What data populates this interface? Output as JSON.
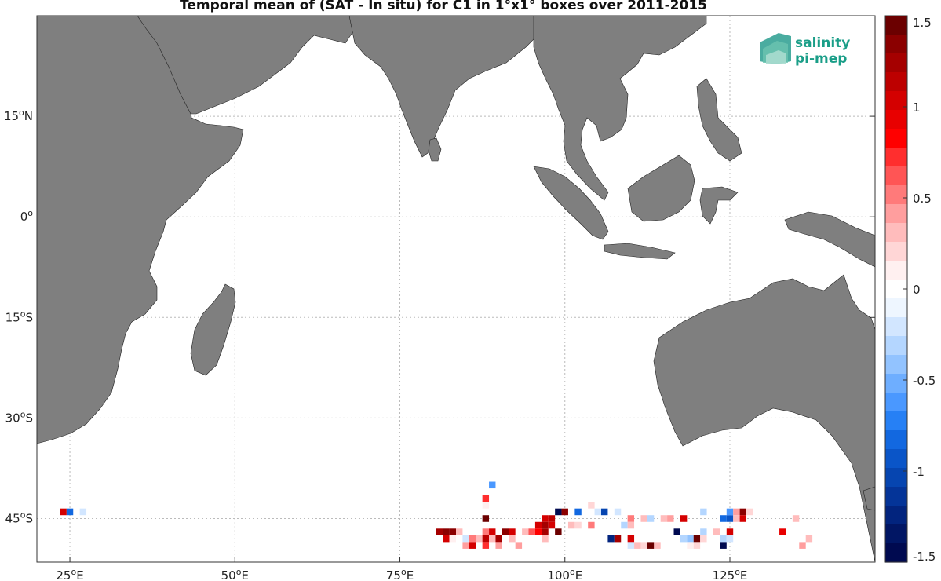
{
  "title": "Temporal mean of (SAT - In situ) for C1 in 1°x1° boxes over 2011-2015",
  "logo": {
    "line1": "salinity",
    "line2": "pi-mep"
  },
  "map": {
    "region": "Indian Ocean",
    "lon_range": [
      20,
      147
    ],
    "lat_range": [
      -51.5,
      30
    ],
    "land_color": "#7f7f7f",
    "ocean_color": "#ffffff",
    "grid": "dotted",
    "x_ticks": [
      {
        "value": 25,
        "deg": "25",
        "hemi": "E"
      },
      {
        "value": 50,
        "deg": "50",
        "hemi": "E"
      },
      {
        "value": 75,
        "deg": "75",
        "hemi": "E"
      },
      {
        "value": 100,
        "deg": "100",
        "hemi": "E"
      },
      {
        "value": 125,
        "deg": "125",
        "hemi": "E"
      }
    ],
    "y_ticks": [
      {
        "value": 15,
        "deg": "15",
        "hemi": "N"
      },
      {
        "value": 0,
        "deg": "0",
        "hemi": ""
      },
      {
        "value": -15,
        "deg": "15",
        "hemi": "S"
      },
      {
        "value": -30,
        "deg": "30",
        "hemi": "S"
      },
      {
        "value": -45,
        "deg": "45",
        "hemi": "S"
      }
    ]
  },
  "colorbar": {
    "range": [
      -1.5,
      1.5
    ],
    "ticks": [
      "1.5",
      "1",
      "0.5",
      "0",
      "-0.5",
      "-1",
      "-1.5"
    ],
    "tick_values": [
      1.5,
      1,
      0.5,
      0,
      -0.5,
      -1,
      -1.5
    ],
    "colors_top_to_bottom": [
      "#6b0000",
      "#8b0000",
      "#a50000",
      "#bd0000",
      "#d40000",
      "#e80000",
      "#ff0000",
      "#ff2e2e",
      "#ff5555",
      "#ff7a7a",
      "#ff9e9e",
      "#ffbcbc",
      "#ffd6d6",
      "#fff0f0",
      "#ffffff",
      "#eef6ff",
      "#d2e6ff",
      "#b4d6ff",
      "#92c3ff",
      "#6eaeff",
      "#4a98ff",
      "#2680f5",
      "#1268e0",
      "#0a55c8",
      "#0645b0",
      "#043498",
      "#02247e",
      "#011664",
      "#000a50"
    ]
  },
  "chart_data": {
    "type": "heatmap",
    "title": "Temporal mean of (SAT - In situ) for C1 in 1°x1° boxes over 2011-2015",
    "units_note": "colorbar -1.5 to 1.5",
    "cells": [
      {
        "lon": 24,
        "lat": -44,
        "value": 1.0
      },
      {
        "lon": 25,
        "lat": -44,
        "value": -0.8
      },
      {
        "lon": 27,
        "lat": -44,
        "value": -0.25
      },
      {
        "lon": 89,
        "lat": -40,
        "value": -0.6
      },
      {
        "lon": 88,
        "lat": -42,
        "value": 0.7
      },
      {
        "lon": 88,
        "lat": -43,
        "value": 0.1
      },
      {
        "lon": 88,
        "lat": -45,
        "value": 1.4
      },
      {
        "lon": 97,
        "lat": -45,
        "value": 1.0
      },
      {
        "lon": 98,
        "lat": -45,
        "value": 1.1
      },
      {
        "lon": 97,
        "lat": -46,
        "value": 1.2
      },
      {
        "lon": 98,
        "lat": -46,
        "value": 1.0
      },
      {
        "lon": 99,
        "lat": -44,
        "value": -1.4
      },
      {
        "lon": 100,
        "lat": -44,
        "value": 1.3
      },
      {
        "lon": 102,
        "lat": -44,
        "value": -0.8
      },
      {
        "lon": 104,
        "lat": -43,
        "value": 0.2
      },
      {
        "lon": 105,
        "lat": -44,
        "value": -0.2
      },
      {
        "lon": 106,
        "lat": -44,
        "value": -1.0
      },
      {
        "lon": 108,
        "lat": -44,
        "value": -0.2
      },
      {
        "lon": 110,
        "lat": -45,
        "value": 0.5
      },
      {
        "lon": 112,
        "lat": -45,
        "value": 0.3
      },
      {
        "lon": 113,
        "lat": -45,
        "value": -0.3
      },
      {
        "lon": 115,
        "lat": -45,
        "value": 0.3
      },
      {
        "lon": 116,
        "lat": -45,
        "value": 0.4
      },
      {
        "lon": 118,
        "lat": -45,
        "value": 1.0
      },
      {
        "lon": 121,
        "lat": -44,
        "value": -0.3
      },
      {
        "lon": 124,
        "lat": -45,
        "value": -0.8
      },
      {
        "lon": 125,
        "lat": -45,
        "value": -0.9
      },
      {
        "lon": 125,
        "lat": -44,
        "value": -0.6
      },
      {
        "lon": 126,
        "lat": -44,
        "value": 0.4
      },
      {
        "lon": 126,
        "lat": -45,
        "value": 0.3
      },
      {
        "lon": 127,
        "lat": -44,
        "value": 1.3
      },
      {
        "lon": 127,
        "lat": -45,
        "value": 1.0
      },
      {
        "lon": 128,
        "lat": -44,
        "value": 0.2
      },
      {
        "lon": 135,
        "lat": -45,
        "value": 0.3
      },
      {
        "lon": 81,
        "lat": -47,
        "value": 1.2
      },
      {
        "lon": 82,
        "lat": -47,
        "value": 1.3
      },
      {
        "lon": 83,
        "lat": -47,
        "value": 1.3
      },
      {
        "lon": 82,
        "lat": -48,
        "value": 1.0
      },
      {
        "lon": 83,
        "lat": -48,
        "value": 0.1
      },
      {
        "lon": 84,
        "lat": -47,
        "value": 0.3
      },
      {
        "lon": 85,
        "lat": -48,
        "value": -0.2
      },
      {
        "lon": 86,
        "lat": -48,
        "value": 0.5
      },
      {
        "lon": 85,
        "lat": -49,
        "value": 0.4
      },
      {
        "lon": 86,
        "lat": -49,
        "value": 1.0
      },
      {
        "lon": 87,
        "lat": -48,
        "value": 0.3
      },
      {
        "lon": 88,
        "lat": -47,
        "value": 0.5
      },
      {
        "lon": 88,
        "lat": -48,
        "value": 1.1
      },
      {
        "lon": 88,
        "lat": -49,
        "value": 0.7
      },
      {
        "lon": 89,
        "lat": -47,
        "value": 1.0
      },
      {
        "lon": 89,
        "lat": -48,
        "value": 0.3
      },
      {
        "lon": 90,
        "lat": -48,
        "value": 1.2
      },
      {
        "lon": 90,
        "lat": -49,
        "value": 0.4
      },
      {
        "lon": 91,
        "lat": -47,
        "value": 1.3
      },
      {
        "lon": 92,
        "lat": -47,
        "value": 1.0
      },
      {
        "lon": 92,
        "lat": -48,
        "value": 0.3
      },
      {
        "lon": 93,
        "lat": -49,
        "value": 0.4
      },
      {
        "lon": 94,
        "lat": -47,
        "value": 0.3
      },
      {
        "lon": 95,
        "lat": -47,
        "value": 0.6
      },
      {
        "lon": 96,
        "lat": -46,
        "value": 1.0
      },
      {
        "lon": 96,
        "lat": -47,
        "value": 0.8
      },
      {
        "lon": 97,
        "lat": -47,
        "value": 1.2
      },
      {
        "lon": 97,
        "lat": -48,
        "value": 0.3
      },
      {
        "lon": 99,
        "lat": -47,
        "value": 1.5
      },
      {
        "lon": 101,
        "lat": -46,
        "value": 0.3
      },
      {
        "lon": 102,
        "lat": -46,
        "value": 0.2
      },
      {
        "lon": 104,
        "lat": -46,
        "value": 0.5
      },
      {
        "lon": 109,
        "lat": -46,
        "value": -0.3
      },
      {
        "lon": 110,
        "lat": -46,
        "value": 0.3
      },
      {
        "lon": 110,
        "lat": -48,
        "value": 1.0
      },
      {
        "lon": 110,
        "lat": -49,
        "value": -0.2
      },
      {
        "lon": 111,
        "lat": -49,
        "value": 0.3
      },
      {
        "lon": 112,
        "lat": -49,
        "value": 0.2
      },
      {
        "lon": 113,
        "lat": -49,
        "value": 1.4
      },
      {
        "lon": 114,
        "lat": -49,
        "value": 0.3
      },
      {
        "lon": 107,
        "lat": -48,
        "value": -1.2
      },
      {
        "lon": 108,
        "lat": -48,
        "value": 1.2
      },
      {
        "lon": 117,
        "lat": -47,
        "value": -1.4
      },
      {
        "lon": 118,
        "lat": -48,
        "value": -0.3
      },
      {
        "lon": 119,
        "lat": -48,
        "value": -0.4
      },
      {
        "lon": 119,
        "lat": -49,
        "value": 0.1
      },
      {
        "lon": 120,
        "lat": -48,
        "value": 1.4
      },
      {
        "lon": 120,
        "lat": -49,
        "value": 0.2
      },
      {
        "lon": 121,
        "lat": -47,
        "value": -0.3
      },
      {
        "lon": 121,
        "lat": -48,
        "value": 0.2
      },
      {
        "lon": 123,
        "lat": -47,
        "value": 0.3
      },
      {
        "lon": 124,
        "lat": -48,
        "value": -0.3
      },
      {
        "lon": 124,
        "lat": -49,
        "value": -1.4
      },
      {
        "lon": 125,
        "lat": -47,
        "value": 1.0
      },
      {
        "lon": 125,
        "lat": -48,
        "value": -0.2
      },
      {
        "lon": 133,
        "lat": -47,
        "value": 0.9
      },
      {
        "lon": 136,
        "lat": -49,
        "value": 0.4
      },
      {
        "lon": 137,
        "lat": -48,
        "value": 0.3
      }
    ]
  }
}
